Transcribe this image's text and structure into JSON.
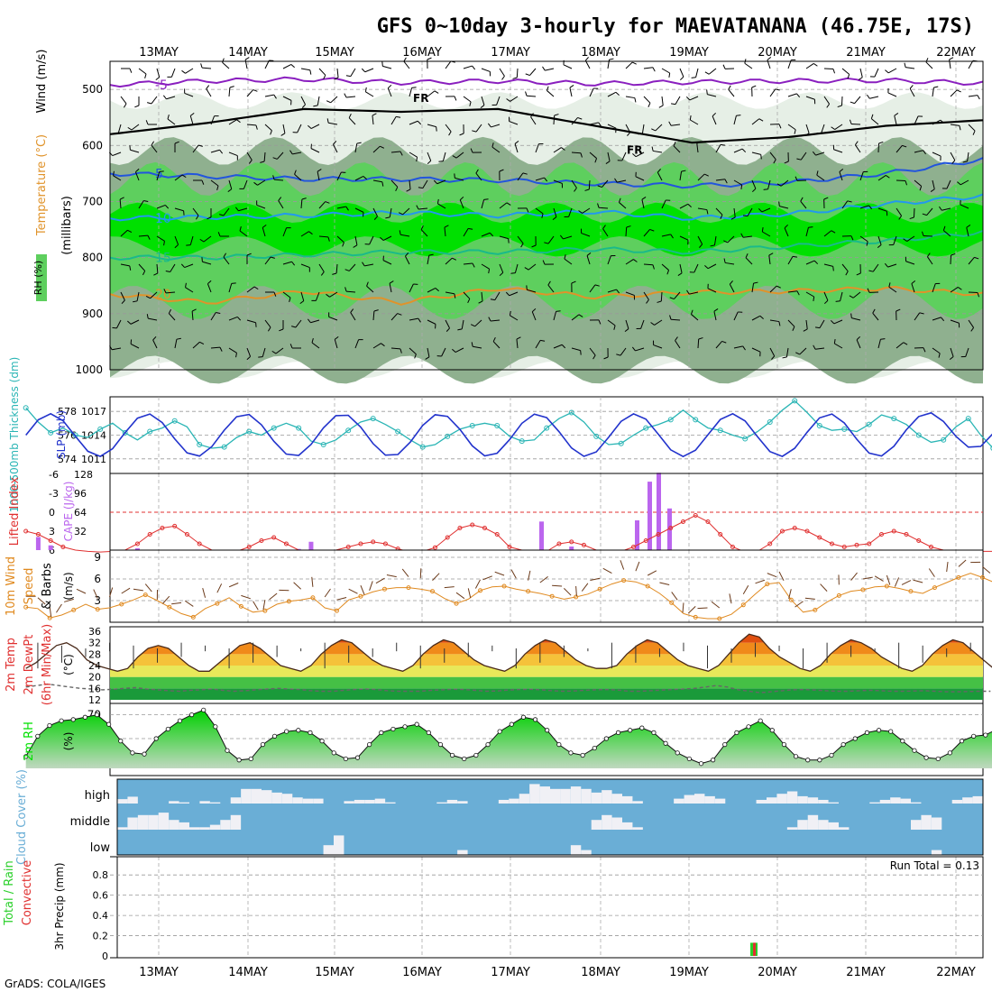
{
  "title": "GFS 0~10day 3-hourly for MAEVATANANA (46.75E, 17S)",
  "footer": "GrADS: COLA/IGES",
  "days": [
    "13MAY",
    "14MAY",
    "15MAY",
    "16MAY",
    "17MAY",
    "18MAY",
    "19MAY",
    "20MAY",
    "21MAY",
    "22MAY"
  ],
  "colors": {
    "rh_dark": "#8fb08f",
    "rh_light": "#e6efe6",
    "rh_green": "#5ecf5e",
    "rh_bright": "#00e000",
    "thickness": "#2ab5b5",
    "slp": "#2233cc",
    "li": "#e03030",
    "cape": "#bb66ee",
    "wind": "#e08a20",
    "cloud": "#6aaed6",
    "precip_total": "#2ad02a",
    "precip_conv": "#e03030"
  },
  "panel1": {
    "ylabel_rh": "RH (%)",
    "ylabel_temp": "Temperature (°C)",
    "ylabel_wind": "Wind (m/s)",
    "ylabel_p": "(millibars)",
    "ylim": [
      450,
      1000
    ],
    "yticks": [
      "500",
      "600",
      "700",
      "800",
      "900",
      "1000"
    ],
    "freezing_label": "FR",
    "isotherms": [
      {
        "label": "-5",
        "color": "#8a1fbf",
        "levels": [
          492,
          485,
          482,
          488,
          485,
          490,
          487,
          485,
          484,
          489
        ]
      },
      {
        "label": "5",
        "color": "#2255dd",
        "levels": [
          650,
          655,
          660,
          660,
          662,
          668,
          672,
          666,
          650,
          625
        ]
      },
      {
        "label": "10",
        "color": "#2299ee",
        "levels": [
          730,
          728,
          725,
          720,
          725,
          718,
          730,
          722,
          705,
          690
        ]
      },
      {
        "label": "15",
        "color": "#1aba8a",
        "levels": [
          800,
          800,
          795,
          790,
          790,
          785,
          790,
          780,
          770,
          755
        ]
      },
      {
        "label": "20",
        "color": "#e0932a",
        "levels": [
          865,
          880,
          860,
          880,
          855,
          870,
          862,
          860,
          855,
          865
        ]
      }
    ],
    "freezing_levels": [
      580,
      560,
      535,
      540,
      535,
      565,
      595,
      585,
      565,
      555
    ]
  },
  "panel2": {
    "ylabel_thickness": "1000-500mb Thickness (dm)",
    "ylabel_slp": "SLP (mb)",
    "yticks_left": [
      "574",
      "576",
      "578"
    ],
    "yticks_right": [
      "1011",
      "1014",
      "1017"
    ],
    "thickness": [
      578.3,
      577.1,
      576.2,
      576.6,
      576.0,
      575.8,
      576.5,
      577.0,
      576.2,
      575.6,
      576.3,
      576.6,
      577.2,
      576.7,
      575.2,
      574.9,
      575.0,
      575.8,
      576.3,
      576.0,
      576.6,
      577.0,
      576.6,
      575.5,
      575.2,
      575.6,
      576.4,
      577.1,
      577.4,
      576.9,
      576.3,
      575.6,
      575.0,
      575.2,
      575.9,
      576.5,
      576.8,
      577.0,
      576.8,
      575.9,
      575.5,
      575.6,
      576.6,
      577.4,
      577.9,
      577.1,
      575.9,
      575.2,
      575.3,
      576.0,
      576.6,
      576.9,
      577.3,
      578.1,
      577.3,
      576.6,
      576.4,
      576.0,
      575.7,
      576.3,
      577.1,
      578.1,
      578.9,
      577.9,
      576.8,
      576.4,
      576.5,
      576.3,
      576.9,
      577.7,
      577.4,
      576.9,
      576.0,
      575.4,
      575.6,
      576.7,
      577.4,
      576.0,
      574.9,
      573.9,
      573.3,
      573.6,
      574.2
    ]
  },
  "panel3": {
    "ylabel_li": "Lifted Index",
    "ylabel_cape": "CAPE (J/kg)",
    "yticks_left": [
      "6",
      "3",
      "0",
      "-3",
      "-6"
    ],
    "yticks_right": [
      "32",
      "64",
      "96",
      "128"
    ],
    "lifted_index": [
      3,
      3.5,
      4.5,
      5.5,
      6,
      6.2,
      6.3,
      6.2,
      6,
      5,
      3.5,
      2.5,
      2.2,
      3.5,
      5,
      6,
      6.3,
      6.2,
      5.5,
      4.5,
      4,
      5,
      6,
      6.3,
      6.2,
      6,
      5.5,
      5,
      4.7,
      5,
      5.8,
      6.3,
      6.2,
      5.6,
      4,
      2.5,
      2,
      2.5,
      3.5,
      5.5,
      6,
      6.3,
      6.2,
      5,
      4.7,
      5.2,
      6,
      6.3,
      6.2,
      5.5,
      4.5,
      3.5,
      2.5,
      1.5,
      0.5,
      1.5,
      3.5,
      5.5,
      6.3,
      6.2,
      5,
      3,
      2.5,
      3,
      4,
      5,
      5.5,
      5.2,
      5,
      3.5,
      3,
      3.5,
      4.5,
      5.5,
      6,
      6.2,
      6.3,
      6.2,
      6.2,
      6.3,
      6.2,
      6.2,
      6.2
    ],
    "cape": [
      0,
      22,
      8,
      0,
      0,
      0,
      0,
      0,
      0,
      3,
      0,
      0,
      0,
      0,
      0,
      0,
      0,
      0,
      0,
      0,
      0,
      0,
      2,
      14,
      0,
      0,
      0,
      0,
      0,
      0,
      0,
      0,
      0,
      0,
      0,
      0,
      0,
      0,
      0,
      0,
      0,
      0,
      0,
      0,
      6,
      0,
      0,
      0,
      0,
      0,
      0,
      0,
      0,
      0,
      0,
      0,
      0,
      0,
      0,
      0,
      0,
      0,
      0,
      0,
      0,
      0,
      0,
      0,
      0,
      0,
      0,
      0,
      0,
      0,
      0,
      0,
      0,
      0,
      0,
      2,
      0,
      0,
      0
    ]
  },
  "panel4": {
    "ylabel_a": "10m Wind",
    "ylabel_b": "Speed",
    "ylabel_c": "& Barbs",
    "ylabel_unit": "(m/s)",
    "yticks": [
      "3",
      "6",
      "9"
    ],
    "speed": [
      2.1,
      1.9,
      0.6,
      1.0,
      1.7,
      2.5,
      1.8,
      2.0,
      2.5,
      3.1,
      3.8,
      3.0,
      2.1,
      1.2,
      0.7,
      1.9,
      2.6,
      3.4,
      2.2,
      1.4,
      1.6,
      2.5,
      2.9,
      3.1,
      3.4,
      2.0,
      1.6,
      3.1,
      3.6,
      4.2,
      4.6,
      4.8,
      4.8,
      4.6,
      4.3,
      3.3,
      2.6,
      3.2,
      4.4,
      4.9,
      5.0,
      4.6,
      4.3,
      4.0,
      3.6,
      3.2,
      3.5,
      3.9,
      4.6,
      5.3,
      5.8,
      5.6,
      5.0,
      4.0,
      2.7,
      1.2,
      0.7,
      0.5,
      0.5,
      1.1,
      2.4,
      3.9,
      5.3,
      5.5,
      3.1,
      1.4,
      1.7,
      2.8,
      3.7,
      4.3,
      4.5,
      4.9,
      5.0,
      4.7,
      4.3,
      4.0,
      4.8,
      5.5,
      6.2,
      6.8,
      6.2,
      5.5,
      5.0,
      5.2,
      5.8,
      6.5,
      7.0,
      6.9,
      4.6,
      4.1,
      2.9,
      9.3
    ]
  },
  "panel5": {
    "ylabel_a": "2m Temp",
    "ylabel_b": "2m DewPt",
    "ylabel_c": "(6hr Min/Max)",
    "ylabel_unit": "(°C)",
    "yticks": [
      "12",
      "16",
      "20",
      "24",
      "28",
      "32",
      "36"
    ],
    "temp": [
      23,
      25,
      28,
      31,
      32,
      30,
      26,
      24,
      23,
      22,
      23,
      27,
      30,
      31,
      30,
      27,
      24,
      22,
      22,
      25,
      28,
      31,
      32,
      30,
      27,
      24,
      23,
      22,
      24,
      28,
      31,
      33,
      32,
      29,
      26,
      24,
      23,
      22,
      24,
      28,
      31,
      33,
      32,
      29,
      26,
      24,
      23,
      22,
      24,
      28,
      31,
      33,
      32,
      29,
      26,
      24,
      23,
      23,
      24,
      28,
      31,
      33,
      32,
      29,
      26,
      24,
      23,
      22,
      24,
      28,
      32,
      35,
      34,
      30,
      27,
      25,
      23,
      22,
      24,
      28,
      31,
      33,
      32,
      30,
      27,
      25,
      23,
      22,
      24,
      28,
      31,
      33,
      32,
      29,
      26,
      23,
      22,
      21,
      25
    ],
    "dewpoint": [
      16.5,
      17,
      17.5,
      17,
      16.5,
      16,
      15.8,
      15.5,
      15.7,
      16,
      16.3,
      15.8,
      15.5,
      15.2,
      15,
      15.3,
      15.5,
      15.8,
      15.3,
      15,
      15.2,
      15.5,
      15.8,
      16,
      15.8,
      15.6,
      15.2,
      15,
      15,
      15.3,
      15.6,
      15.8,
      15.6,
      15.2,
      15,
      15,
      15,
      15.3,
      15.5,
      15.7,
      15.6,
      15.3,
      15,
      15.1,
      15.4,
      15.6,
      15.7,
      15.5,
      15.2,
      15,
      15.1,
      15.3,
      15.5,
      15.6,
      15.4,
      15,
      15,
      15.2,
      15.4,
      15.6,
      15.8,
      16,
      16.5,
      17,
      16.5,
      15.5,
      15,
      14.5,
      14.8,
      15.2,
      15.5,
      15.6,
      15.4,
      15.2,
      15,
      15,
      15.2,
      15.3,
      15.2,
      15,
      15,
      15.1,
      15.2,
      15,
      14.8,
      14.8,
      14.9,
      15,
      15
    ]
  },
  "panel6": {
    "ylabel_a": "2m RH",
    "ylabel_unit": "(%)",
    "yticks": [
      "30",
      "50",
      "70"
    ],
    "rh": [
      35,
      52,
      61,
      65,
      66,
      68,
      70,
      62,
      48,
      38,
      37,
      50,
      58,
      65,
      70,
      74,
      60,
      40,
      32,
      33,
      45,
      52,
      56,
      57,
      55,
      48,
      38,
      33,
      34,
      45,
      55,
      58,
      60,
      62,
      55,
      45,
      36,
      33,
      36,
      45,
      56,
      62,
      68,
      66,
      57,
      45,
      38,
      36,
      42,
      50,
      55,
      57,
      59,
      55,
      46,
      38,
      33,
      29,
      32,
      45,
      55,
      60,
      65,
      57,
      45,
      35,
      32,
      32,
      36,
      45,
      50,
      55,
      57,
      56,
      48,
      40,
      34,
      33,
      38,
      48,
      52,
      53,
      58,
      54,
      41
    ]
  },
  "panel7": {
    "ylabel": "Cloud Cover (%)",
    "levels": [
      "high",
      "middle",
      "low"
    ],
    "high_cover": [
      82,
      72,
      100,
      100,
      100,
      90,
      95,
      100,
      90,
      95,
      100,
      75,
      40,
      40,
      45,
      55,
      60,
      75,
      80,
      80,
      100,
      100,
      90,
      85,
      85,
      80,
      95,
      100,
      100,
      100,
      100,
      95,
      85,
      90,
      100,
      100,
      100,
      85,
      80,
      60,
      20,
      30,
      40,
      40,
      30,
      40,
      55,
      45,
      60,
      70,
      90,
      100,
      100,
      100,
      80,
      65,
      60,
      70,
      80,
      100,
      100,
      100,
      85,
      75,
      60,
      50,
      70,
      75,
      85,
      95,
      100,
      100,
      100,
      95,
      85,
      75,
      80,
      95,
      100,
      100,
      100,
      85,
      75,
      70
    ],
    "mid_cover": [
      90,
      50,
      40,
      40,
      30,
      60,
      70,
      90,
      90,
      80,
      60,
      40,
      100,
      100,
      100,
      100,
      100,
      100,
      100,
      100,
      100,
      100,
      100,
      100,
      100,
      100,
      100,
      100,
      100,
      100,
      100,
      100,
      100,
      100,
      100,
      100,
      100,
      100,
      100,
      100,
      100,
      100,
      100,
      100,
      100,
      100,
      60,
      40,
      50,
      70,
      90,
      100,
      100,
      100,
      100,
      100,
      100,
      100,
      100,
      100,
      100,
      100,
      100,
      100,
      100,
      90,
      60,
      40,
      60,
      70,
      90,
      100,
      100,
      100,
      100,
      100,
      100,
      60,
      40,
      50,
      100,
      100,
      100,
      100
    ],
    "low_cover": [
      100,
      100,
      100,
      100,
      100,
      100,
      100,
      100,
      100,
      100,
      100,
      100,
      100,
      100,
      100,
      100,
      100,
      100,
      100,
      100,
      60,
      20,
      100,
      100,
      100,
      100,
      100,
      100,
      100,
      100,
      100,
      100,
      100,
      80,
      100,
      100,
      100,
      100,
      100,
      100,
      100,
      100,
      100,
      100,
      60,
      80,
      100,
      100,
      100,
      100,
      100,
      100,
      100,
      100,
      100,
      100,
      100,
      100,
      100,
      100,
      100,
      100,
      100,
      100,
      100,
      100,
      100,
      100,
      100,
      100,
      100,
      100,
      100,
      100,
      100,
      100,
      100,
      100,
      100,
      80,
      100,
      100,
      100,
      100
    ]
  },
  "panel8": {
    "ylabel_a": "Total / Rain",
    "ylabel_b": "Convective",
    "ylabel_unit": "3hr Precip (mm)",
    "yticks": [
      "0",
      "0.2",
      "0.4",
      "0.6",
      "0.8"
    ],
    "run_total": "Run Total = 0.13",
    "precip_index": 55,
    "precip_total": 0.13,
    "precip_conv": 0.13
  }
}
